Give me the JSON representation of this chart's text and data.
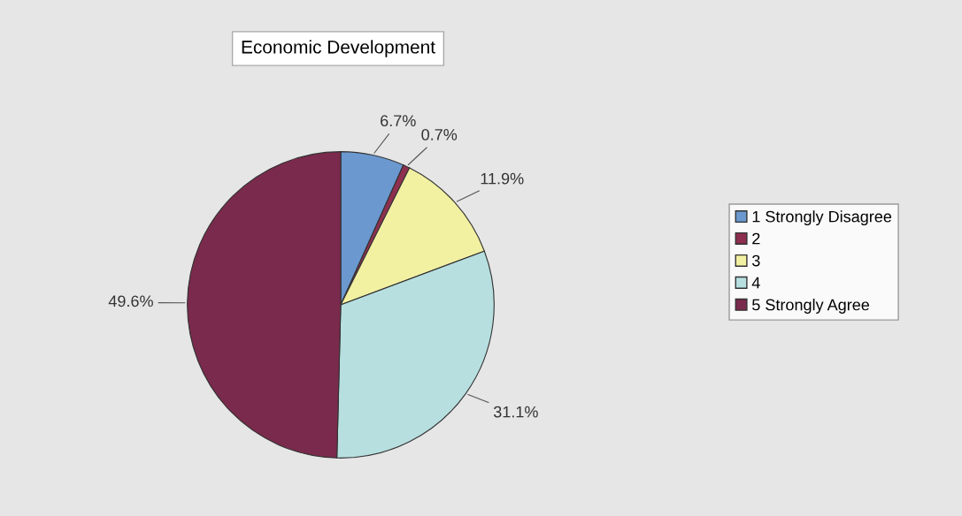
{
  "chart_data": {
    "type": "pie",
    "title": "Economic Development",
    "categories": [
      "1 Strongly Disagree",
      "2",
      "3",
      "4",
      "5 Strongly Agree"
    ],
    "values": [
      6.7,
      0.7,
      11.9,
      31.1,
      49.6
    ],
    "value_labels": [
      "6.7%",
      "0.7%",
      "11.9%",
      "31.1%",
      "49.6%"
    ],
    "colors": [
      "#6a98cf",
      "#8e2f4f",
      "#f2f1a2",
      "#b7dfe0",
      "#7a2a4c"
    ],
    "legend": "right"
  }
}
